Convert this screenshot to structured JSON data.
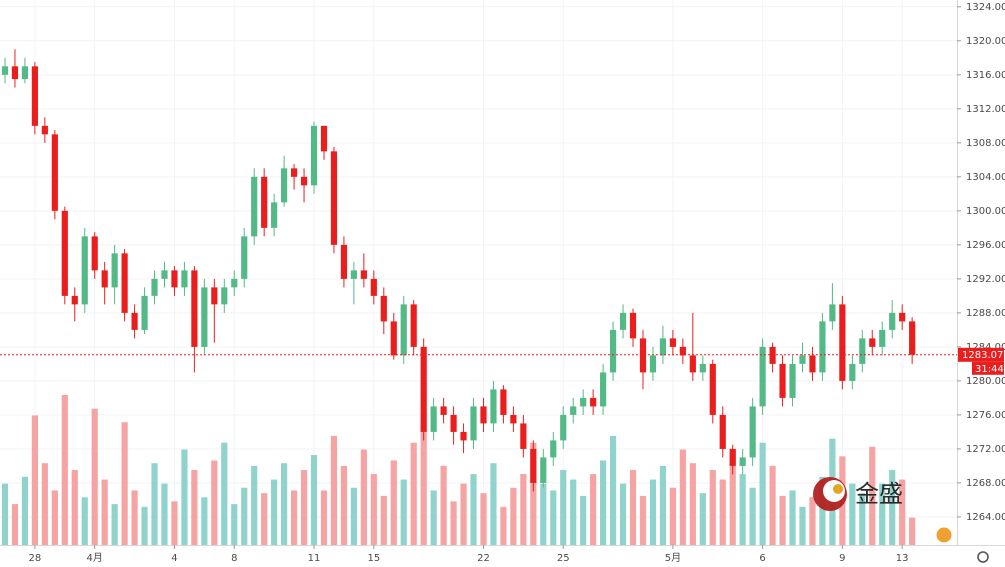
{
  "chart_data": {
    "type": "candlestick",
    "up_color": "#53b987",
    "down_color": "#eb1e1e",
    "up_volume_color": "#8fd3cc",
    "down_volume_color": "#f5a3a3",
    "grid": true,
    "xlim": [
      -0.5,
      95.5
    ],
    "xticks": [
      {
        "value": 3,
        "label": "28"
      },
      {
        "value": 9,
        "label": "4月"
      },
      {
        "value": 17,
        "label": "4"
      },
      {
        "value": 23,
        "label": "8"
      },
      {
        "value": 31,
        "label": "11"
      },
      {
        "value": 37,
        "label": "15"
      },
      {
        "value": 48,
        "label": "22"
      },
      {
        "value": 56,
        "label": "25"
      },
      {
        "value": 67,
        "label": "5月"
      },
      {
        "value": 76,
        "label": "6"
      },
      {
        "value": 84,
        "label": "9"
      },
      {
        "value": 90,
        "label": "13"
      }
    ],
    "ylim": [
      1260.7,
      1324.8
    ],
    "yticks": [
      {
        "value": 1264,
        "label": "1264.00"
      },
      {
        "value": 1268,
        "label": "1268.00"
      },
      {
        "value": 1272,
        "label": "1272.00"
      },
      {
        "value": 1276,
        "label": "1276.00"
      },
      {
        "value": 1280,
        "label": "1280.00"
      },
      {
        "value": 1284,
        "label": "1284.00"
      },
      {
        "value": 1288,
        "label": "1288.00"
      },
      {
        "value": 1292,
        "label": "1292.00"
      },
      {
        "value": 1296,
        "label": "1296.00"
      },
      {
        "value": 1300,
        "label": "1300.00"
      },
      {
        "value": 1304,
        "label": "1304.00"
      },
      {
        "value": 1308,
        "label": "1308.00"
      },
      {
        "value": 1312,
        "label": "1312.00"
      },
      {
        "value": 1316,
        "label": "1316.00"
      },
      {
        "value": 1320,
        "label": "1320.00"
      },
      {
        "value": 1324,
        "label": "1324.00"
      }
    ],
    "open": [
      1316,
      1317,
      1315.5,
      1317,
      1310,
      1309,
      1300,
      1290,
      1289,
      1297,
      1293,
      1291,
      1295,
      1288,
      1286,
      1290,
      1292,
      1293,
      1291,
      1293,
      1284,
      1291,
      1289,
      1291,
      1292,
      1297,
      1304,
      1298,
      1301,
      1305,
      1304,
      1303,
      1310,
      1307,
      1296,
      1292,
      1293,
      1292,
      1290,
      1287,
      1283,
      1289,
      1284,
      1274,
      1277,
      1276,
      1274,
      1273,
      1277,
      1275,
      1279,
      1276,
      1275,
      1272,
      1268,
      1271,
      1273,
      1276,
      1277,
      1278,
      1277,
      1281,
      1286,
      1288,
      1285,
      1281,
      1283,
      1285,
      1284,
      1283,
      1281,
      1282,
      1276,
      1272,
      1270,
      1271,
      1277,
      1284,
      1282,
      1278,
      1282,
      1283,
      1281,
      1287,
      1289,
      1280,
      1282,
      1285,
      1284,
      1286,
      1288,
      1287
    ],
    "high": [
      1318,
      1319,
      1318,
      1317.5,
      1311,
      1309.5,
      1300.5,
      1291,
      1298,
      1297.5,
      1294,
      1296,
      1295.5,
      1289,
      1291,
      1293,
      1294,
      1293.5,
      1294,
      1293.5,
      1292,
      1292,
      1292,
      1293,
      1298,
      1305,
      1305,
      1302,
      1306.5,
      1305.5,
      1305,
      1310.5,
      1310,
      1307.5,
      1297,
      1294,
      1295,
      1293,
      1291,
      1288,
      1290,
      1289.5,
      1285,
      1278,
      1278,
      1277,
      1275,
      1278,
      1278,
      1280,
      1279.5,
      1277,
      1276,
      1273,
      1272,
      1274,
      1277,
      1278,
      1279,
      1279,
      1282,
      1287,
      1289,
      1288.5,
      1286,
      1284,
      1286.5,
      1286,
      1285,
      1288,
      1283,
      1282.5,
      1277,
      1272.5,
      1272,
      1278,
      1285,
      1284.5,
      1283,
      1283,
      1284.5,
      1284,
      1288,
      1291.5,
      1290,
      1283,
      1286,
      1286,
      1287,
      1289.5,
      1289,
      1287.5
    ],
    "low": [
      1315,
      1314.5,
      1315,
      1309,
      1308,
      1299,
      1289,
      1287,
      1288,
      1292,
      1289,
      1289,
      1287,
      1285,
      1285.5,
      1289,
      1291,
      1290,
      1290,
      1281,
      1283,
      1284.5,
      1288,
      1290,
      1291,
      1296,
      1297,
      1297,
      1300.5,
      1302.5,
      1301,
      1302,
      1306,
      1295,
      1291,
      1289,
      1291,
      1289,
      1285.5,
      1282.5,
      1282,
      1283,
      1273,
      1273,
      1275,
      1272.5,
      1271.5,
      1272,
      1274,
      1274,
      1275,
      1274,
      1271,
      1267,
      1267.5,
      1270,
      1272,
      1275,
      1276,
      1276,
      1276,
      1280,
      1285,
      1284,
      1279,
      1280,
      1282,
      1283,
      1282,
      1280,
      1280,
      1275,
      1271,
      1269,
      1269,
      1270,
      1276,
      1281,
      1277,
      1277,
      1281,
      1280,
      1280,
      1286,
      1279,
      1279,
      1281,
      1283,
      1283,
      1285,
      1286,
      1282
    ],
    "close": [
      1317,
      1315.5,
      1317,
      1310,
      1309,
      1300,
      1290,
      1289,
      1297,
      1293,
      1291,
      1295,
      1288,
      1286,
      1290,
      1292,
      1293,
      1291,
      1293,
      1284,
      1291,
      1289,
      1291,
      1292,
      1297,
      1304,
      1298,
      1301,
      1305,
      1304,
      1303,
      1310,
      1307,
      1296,
      1292,
      1293,
      1292,
      1290,
      1287,
      1283,
      1289,
      1284,
      1274,
      1277,
      1276,
      1274,
      1273,
      1277,
      1275,
      1279,
      1276,
      1275,
      1272,
      1268,
      1271,
      1273,
      1276,
      1277,
      1278,
      1277,
      1281,
      1286,
      1288,
      1285,
      1281,
      1283,
      1285,
      1284,
      1283,
      1281,
      1282,
      1276,
      1272,
      1270,
      1271,
      1277,
      1284,
      1282,
      1278,
      1282,
      1283,
      1281,
      1287,
      1289,
      1280,
      1282,
      1285,
      1284,
      1286,
      1288,
      1287,
      1283.07
    ],
    "volume": [
      45,
      30,
      50,
      95,
      60,
      40,
      110,
      55,
      35,
      100,
      48,
      30,
      90,
      40,
      28,
      60,
      45,
      32,
      70,
      55,
      35,
      62,
      75,
      30,
      42,
      58,
      38,
      48,
      60,
      40,
      55,
      66,
      40,
      80,
      58,
      42,
      70,
      52,
      36,
      62,
      48,
      75,
      88,
      40,
      58,
      32,
      45,
      52,
      38,
      60,
      28,
      42,
      52,
      75,
      45,
      40,
      55,
      48,
      36,
      52,
      62,
      80,
      45,
      55,
      36,
      48,
      58,
      42,
      70,
      60,
      38,
      55,
      48,
      70,
      52,
      42,
      75,
      58,
      36,
      40,
      28,
      35,
      50,
      78,
      65,
      45,
      38,
      72,
      45,
      55,
      48,
      20
    ],
    "last_price": 1283.07,
    "countdown": "31:44"
  },
  "watermark": "金盛"
}
